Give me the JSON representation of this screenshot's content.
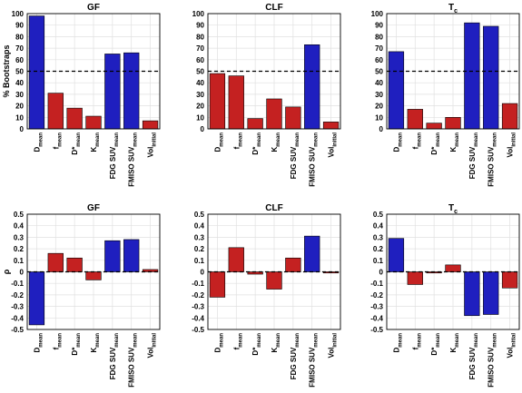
{
  "chart_data": [
    {
      "type": "bar",
      "title": "GF",
      "title_sub": "",
      "ylabel": "% Bootstraps",
      "ylim": [
        0,
        100
      ],
      "yticks": [
        "0",
        "10",
        "20",
        "30",
        "40",
        "50",
        "60",
        "70",
        "80",
        "90",
        "100"
      ],
      "reference_line": 50,
      "categories": [
        [
          "D",
          "mean"
        ],
        [
          "f",
          "mean"
        ],
        [
          "D*",
          "mean"
        ],
        [
          "K",
          "mean"
        ],
        [
          "FDG SUV",
          "mean"
        ],
        [
          "FMISO SUV",
          "mean"
        ],
        [
          "Vol",
          "initial"
        ]
      ],
      "values": [
        98,
        31,
        18,
        11,
        65,
        66,
        7
      ],
      "colors": [
        "#1f1fbf",
        "#c42121",
        "#c42121",
        "#c42121",
        "#1f1fbf",
        "#1f1fbf",
        "#c42121"
      ]
    },
    {
      "type": "bar",
      "title": "CLF",
      "title_sub": "",
      "ylabel": "",
      "ylim": [
        0,
        100
      ],
      "yticks": [
        "0",
        "10",
        "20",
        "30",
        "40",
        "50",
        "60",
        "70",
        "80",
        "90",
        "100"
      ],
      "reference_line": 50,
      "categories": [
        [
          "D",
          "mean"
        ],
        [
          "f",
          "mean"
        ],
        [
          "D*",
          "mean"
        ],
        [
          "K",
          "mean"
        ],
        [
          "FDG SUV",
          "mean"
        ],
        [
          "FMISO SUV",
          "mean"
        ],
        [
          "Vol",
          "initial"
        ]
      ],
      "values": [
        48,
        46,
        9,
        26,
        19,
        73,
        6
      ],
      "colors": [
        "#c42121",
        "#c42121",
        "#c42121",
        "#c42121",
        "#c42121",
        "#1f1fbf",
        "#c42121"
      ]
    },
    {
      "type": "bar",
      "title": "T",
      "title_sub": "c",
      "ylabel": "",
      "ylim": [
        0,
        100
      ],
      "yticks": [
        "0",
        "10",
        "20",
        "30",
        "40",
        "50",
        "60",
        "70",
        "80",
        "90",
        "100"
      ],
      "reference_line": 50,
      "categories": [
        [
          "D",
          "mean"
        ],
        [
          "f",
          "mean"
        ],
        [
          "D*",
          "mean"
        ],
        [
          "K",
          "mean"
        ],
        [
          "FDG SUV",
          "mean"
        ],
        [
          "FMISO SUV",
          "mean"
        ],
        [
          "Vol",
          "initial"
        ]
      ],
      "values": [
        67,
        17,
        5,
        10,
        92,
        89,
        22
      ],
      "colors": [
        "#1f1fbf",
        "#c42121",
        "#c42121",
        "#c42121",
        "#1f1fbf",
        "#1f1fbf",
        "#c42121"
      ]
    },
    {
      "type": "bar",
      "title": "GF",
      "title_sub": "",
      "ylabel": "ρ",
      "ylim": [
        -0.5,
        0.5
      ],
      "yticks": [
        "-0.5",
        "-0.4",
        "-0.3",
        "-0.2",
        "-0.1",
        "0",
        "0.1",
        "0.2",
        "0.3",
        "0.4",
        "0.5"
      ],
      "reference_line": 0,
      "categories": [
        [
          "D",
          "mean"
        ],
        [
          "f",
          "mean"
        ],
        [
          "D*",
          "mean"
        ],
        [
          "K",
          "mean"
        ],
        [
          "FDG SUV",
          "mean"
        ],
        [
          "FMISO SUV",
          "mean"
        ],
        [
          "Vol",
          "initial"
        ]
      ],
      "values": [
        -0.46,
        0.16,
        0.12,
        -0.07,
        0.27,
        0.28,
        0.02
      ],
      "colors": [
        "#1f1fbf",
        "#c42121",
        "#c42121",
        "#c42121",
        "#1f1fbf",
        "#1f1fbf",
        "#c42121"
      ]
    },
    {
      "type": "bar",
      "title": "CLF",
      "title_sub": "",
      "ylabel": "",
      "ylim": [
        -0.5,
        0.5
      ],
      "yticks": [
        "-0.5",
        "-0.4",
        "-0.3",
        "-0.2",
        "-0.1",
        "0",
        "0.1",
        "0.2",
        "0.3",
        "0.4",
        "0.5"
      ],
      "reference_line": 0,
      "categories": [
        [
          "D",
          "mean"
        ],
        [
          "f",
          "mean"
        ],
        [
          "D*",
          "mean"
        ],
        [
          "K",
          "mean"
        ],
        [
          "FDG SUV",
          "mean"
        ],
        [
          "FMISO SUV",
          "mean"
        ],
        [
          "Vol",
          "initial"
        ]
      ],
      "values": [
        -0.22,
        0.21,
        -0.02,
        -0.15,
        0.12,
        0.31,
        -0.01
      ],
      "colors": [
        "#c42121",
        "#c42121",
        "#c42121",
        "#c42121",
        "#c42121",
        "#1f1fbf",
        "#c42121"
      ]
    },
    {
      "type": "bar",
      "title": "T",
      "title_sub": "c",
      "ylabel": "",
      "ylim": [
        -0.5,
        0.5
      ],
      "yticks": [
        "-0.5",
        "-0.4",
        "-0.3",
        "-0.2",
        "-0.1",
        "0",
        "0.1",
        "0.2",
        "0.3",
        "0.4",
        "0.5"
      ],
      "reference_line": 0,
      "categories": [
        [
          "D",
          "mean"
        ],
        [
          "f",
          "mean"
        ],
        [
          "D*",
          "mean"
        ],
        [
          "K",
          "mean"
        ],
        [
          "FDG SUV",
          "mean"
        ],
        [
          "FMISO SUV",
          "mean"
        ],
        [
          "Vol",
          "initial"
        ]
      ],
      "values": [
        0.29,
        -0.11,
        -0.01,
        0.06,
        -0.38,
        -0.37,
        -0.14
      ],
      "colors": [
        "#1f1fbf",
        "#c42121",
        "#c42121",
        "#c42121",
        "#1f1fbf",
        "#1f1fbf",
        "#c42121"
      ]
    }
  ]
}
